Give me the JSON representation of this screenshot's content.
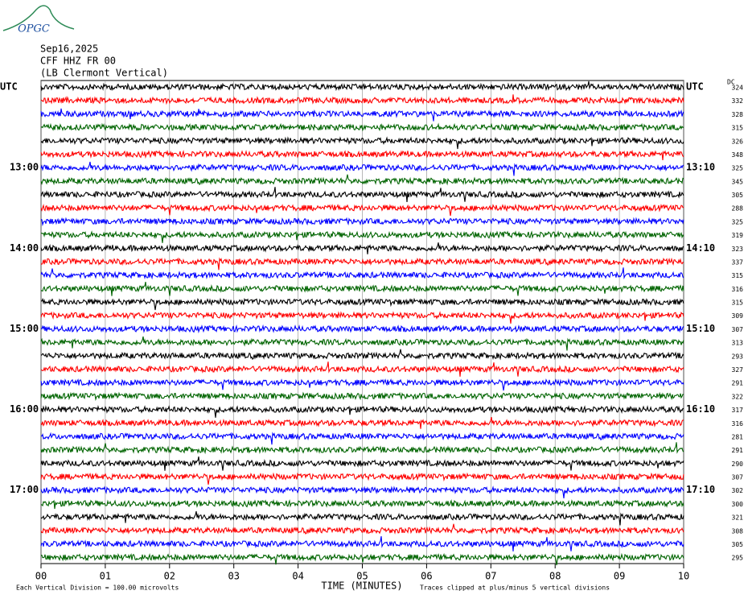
{
  "header": {
    "logo": "OPGC",
    "lines": [
      "Sep16,2025",
      "CFF HHZ FR 00",
      "(LB  Clermont Vertical)"
    ],
    "dc_label": "DC"
  },
  "chart_data": {
    "type": "helicorder",
    "xlim": [
      0,
      10
    ],
    "xticks": [
      {
        "value": 0,
        "label": "00"
      },
      {
        "value": 1,
        "label": "01"
      },
      {
        "value": 2,
        "label": "02"
      },
      {
        "value": 3,
        "label": "03"
      },
      {
        "value": 4,
        "label": "04"
      },
      {
        "value": 5,
        "label": "05"
      },
      {
        "value": 6,
        "label": "06"
      },
      {
        "value": 7,
        "label": "07"
      },
      {
        "value": 8,
        "label": "08"
      },
      {
        "value": 9,
        "label": "09"
      },
      {
        "value": 10,
        "label": "10"
      }
    ],
    "xlabel": "TIME (MINUTES)",
    "grid": true,
    "trace_colors": [
      "#000000",
      "#ff0000",
      "#0000ff",
      "#006400"
    ],
    "left_labels": [
      "UTC",
      null,
      null,
      null,
      null,
      null,
      "13:00",
      null,
      null,
      null,
      null,
      null,
      "14:00",
      null,
      null,
      null,
      null,
      null,
      "15:00",
      null,
      null,
      null,
      null,
      null,
      "16:00",
      null,
      null,
      null,
      null,
      null,
      "17:00",
      null,
      null,
      null,
      null,
      null
    ],
    "right_labels": [
      "UTC",
      null,
      null,
      null,
      null,
      null,
      "13:10",
      null,
      null,
      null,
      null,
      null,
      "14:10",
      null,
      null,
      null,
      null,
      null,
      "15:10",
      null,
      null,
      null,
      null,
      null,
      "16:10",
      null,
      null,
      null,
      null,
      null,
      "17:10",
      null,
      null,
      null,
      null,
      null
    ],
    "dc_values": [
      324,
      332,
      328,
      315,
      326,
      348,
      325,
      345,
      305,
      288,
      325,
      319,
      323,
      337,
      315,
      316,
      315,
      309,
      307,
      313,
      293,
      327,
      291,
      322,
      317,
      316,
      281,
      291,
      290,
      307,
      302,
      300,
      321,
      308,
      305,
      295
    ],
    "footer_left": "Each Vertical Division =  100.00 microvolts",
    "footer_right": "Traces clipped at plus/minus 5 vertical divisions"
  }
}
